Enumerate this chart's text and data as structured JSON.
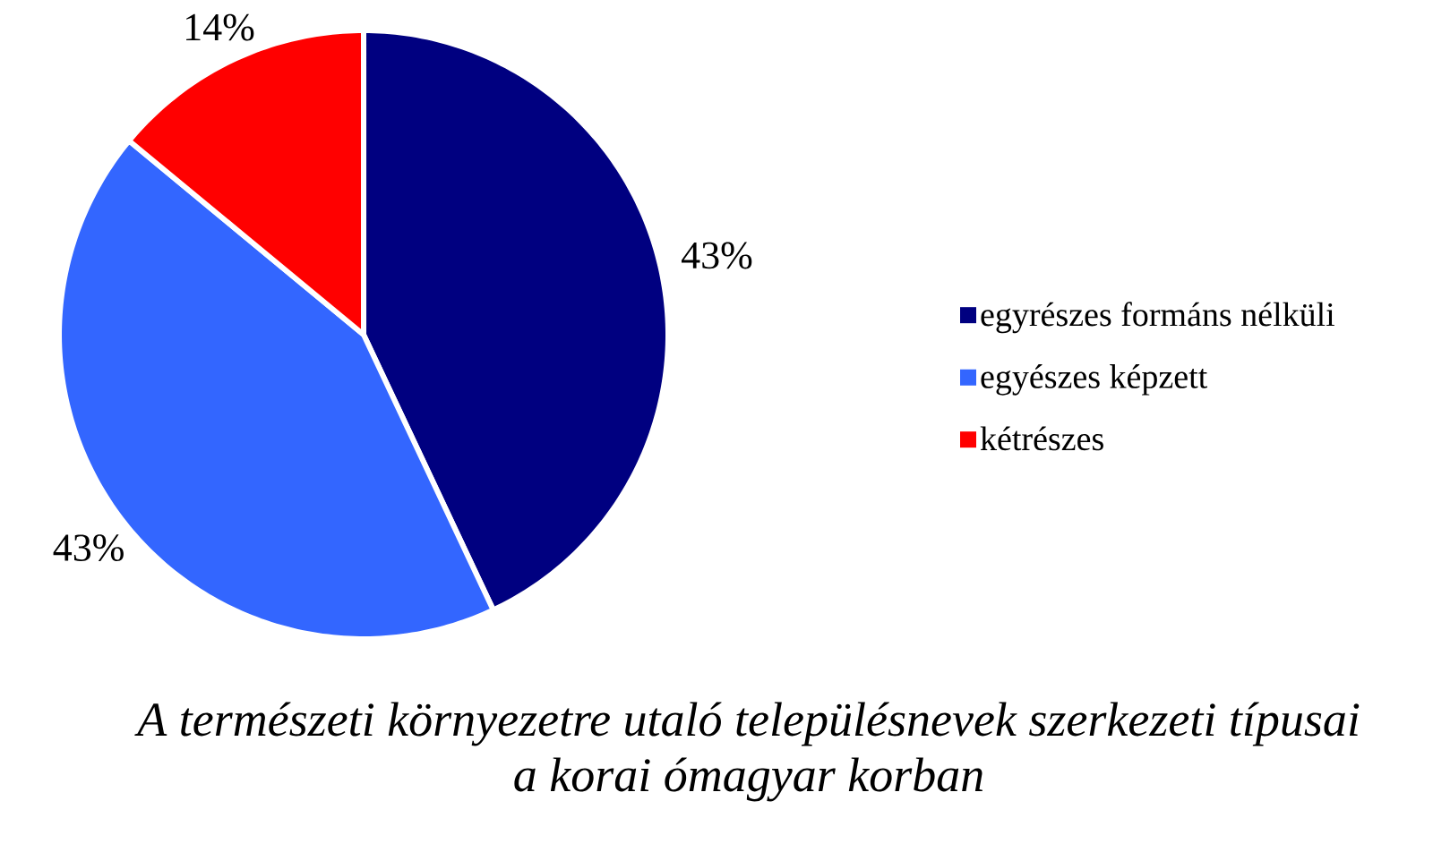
{
  "chart_data": {
    "type": "pie",
    "title": "A természeti környezetre utaló településnevek szerkezeti típusai a korai ómagyar korban",
    "categories": [
      "egyrészes formáns nélküli",
      "egyészes képzett",
      "kétrészes"
    ],
    "values": [
      43,
      43,
      14
    ],
    "colors": [
      "#000080",
      "#3366ff",
      "#ff0000"
    ],
    "value_labels": [
      "43%",
      "43%",
      "14%"
    ],
    "legend": "right"
  }
}
